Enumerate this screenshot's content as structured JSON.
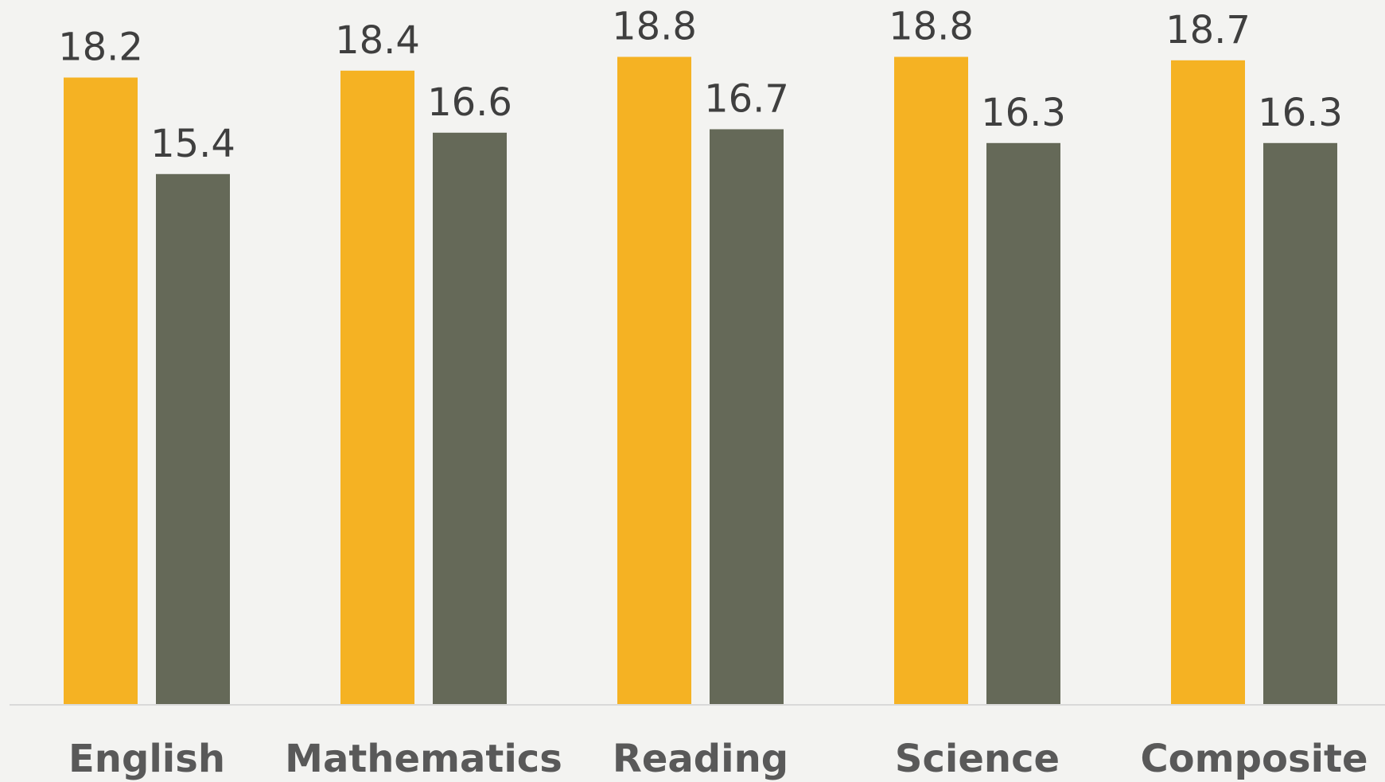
{
  "chart_data": {
    "type": "bar",
    "title": "",
    "xlabel": "",
    "ylabel": "",
    "categories": [
      "English",
      "Mathematics",
      "Reading",
      "Science",
      "Composite"
    ],
    "series": [
      {
        "values": [
          18.2,
          18.4,
          18.8,
          18.8,
          18.7
        ],
        "color": "#f5b223"
      },
      {
        "values": [
          15.4,
          16.6,
          16.7,
          16.3,
          16.3
        ],
        "color": "#656958"
      }
    ],
    "ylim": [
      0,
      20.45
    ],
    "grid": false,
    "legend": "none",
    "data_labels": true
  }
}
